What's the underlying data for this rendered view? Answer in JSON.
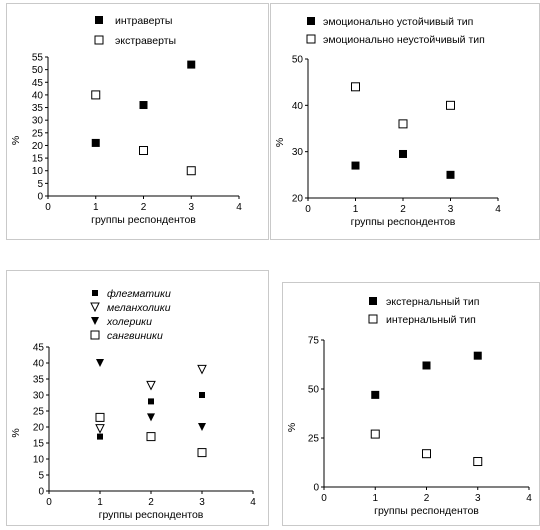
{
  "chart_data": [
    {
      "type": "scatter",
      "xlabel": "группы респондентов",
      "ylabel": "%",
      "xlim": [
        0,
        4
      ],
      "ylim": [
        0,
        55
      ],
      "xticks": [
        0,
        1,
        2,
        3,
        4
      ],
      "yticks": [
        0,
        5,
        10,
        15,
        20,
        25,
        30,
        35,
        40,
        45,
        50,
        55
      ],
      "legend_position": "top",
      "series": [
        {
          "name": "интраверты",
          "marker": "filled-square",
          "x": [
            1,
            2,
            3
          ],
          "values": [
            21,
            36,
            52
          ]
        },
        {
          "name": "экстраверты",
          "marker": "open-square",
          "x": [
            1,
            2,
            3
          ],
          "values": [
            40,
            18,
            10
          ]
        }
      ]
    },
    {
      "type": "scatter",
      "xlabel": "группы респондентов",
      "ylabel": "%",
      "xlim": [
        0,
        4
      ],
      "ylim": [
        20,
        50
      ],
      "xticks": [
        0,
        1,
        2,
        3,
        4
      ],
      "yticks": [
        20,
        30,
        40,
        50
      ],
      "legend_position": "top",
      "series": [
        {
          "name": "эмоционально устойчивый тип",
          "marker": "filled-square",
          "x": [
            1,
            2,
            3
          ],
          "values": [
            27,
            29.5,
            25
          ]
        },
        {
          "name": "эмоционально неустойчивый тип",
          "marker": "open-square",
          "x": [
            1,
            2,
            3
          ],
          "values": [
            44,
            36,
            40
          ]
        }
      ]
    },
    {
      "type": "scatter",
      "xlabel": "группы респондентов",
      "ylabel": "%",
      "xlim": [
        0,
        4
      ],
      "ylim": [
        0,
        45
      ],
      "xticks": [
        0,
        1,
        2,
        3,
        4
      ],
      "yticks": [
        0,
        5,
        10,
        15,
        20,
        25,
        30,
        35,
        40,
        45
      ],
      "legend_position": "top",
      "series": [
        {
          "name": "флегматики",
          "marker": "small-filled-square",
          "x": [
            1,
            2,
            3
          ],
          "values": [
            17,
            28,
            30
          ]
        },
        {
          "name": "меланхолики",
          "marker": "open-triangle-down",
          "x": [
            1,
            2,
            3
          ],
          "values": [
            19.5,
            33,
            38
          ]
        },
        {
          "name": "холерики",
          "marker": "filled-triangle-down",
          "x": [
            1,
            2,
            3
          ],
          "values": [
            40,
            23,
            20
          ]
        },
        {
          "name": "сангвиники",
          "marker": "open-square",
          "x": [
            1,
            2,
            3
          ],
          "values": [
            23,
            17,
            12
          ]
        }
      ]
    },
    {
      "type": "scatter",
      "xlabel": "группы респондентов",
      "ylabel": "%",
      "xlim": [
        0,
        4
      ],
      "ylim": [
        0,
        75
      ],
      "xticks": [
        0,
        1,
        2,
        3,
        4
      ],
      "yticks": [
        0,
        25,
        50,
        75
      ],
      "legend_position": "top",
      "series": [
        {
          "name": "экстернальный тип",
          "marker": "filled-square",
          "x": [
            1,
            2,
            3
          ],
          "values": [
            47,
            62,
            67
          ]
        },
        {
          "name": "интернальный тип",
          "marker": "open-square",
          "x": [
            1,
            2,
            3
          ],
          "values": [
            27,
            17,
            13
          ]
        }
      ]
    }
  ]
}
